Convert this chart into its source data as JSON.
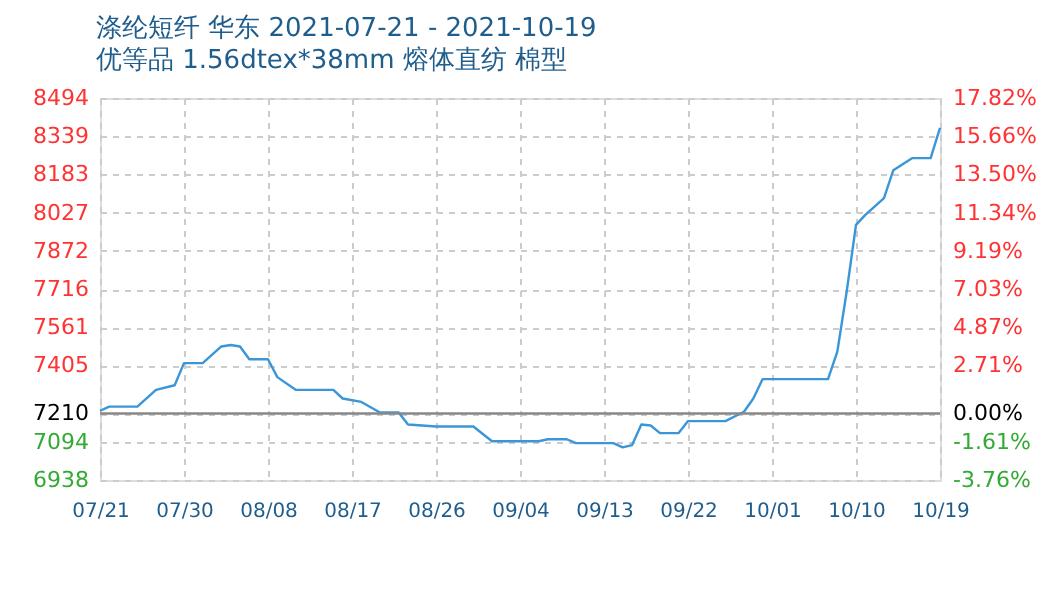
{
  "chart_data": {
    "type": "line",
    "title": "涤纶短纤 华东 2021-07-21 - 2021-10-19",
    "subtitle": "优等品 1.56dtex*38mm 熔体直纺 棉型",
    "x": [
      "2021-07-21",
      "2021-07-22",
      "2021-07-25",
      "2021-07-27",
      "2021-07-29",
      "2021-07-30",
      "2021-08-01",
      "2021-08-03",
      "2021-08-04",
      "2021-08-05",
      "2021-08-06",
      "2021-08-08",
      "2021-08-09",
      "2021-08-11",
      "2021-08-15",
      "2021-08-16",
      "2021-08-18",
      "2021-08-20",
      "2021-08-22",
      "2021-08-23",
      "2021-08-26",
      "2021-08-30",
      "2021-09-01",
      "2021-09-06",
      "2021-09-07",
      "2021-09-09",
      "2021-09-10",
      "2021-09-14",
      "2021-09-15",
      "2021-09-16",
      "2021-09-17",
      "2021-09-18",
      "2021-09-19",
      "2021-09-21",
      "2021-09-22",
      "2021-09-26",
      "2021-09-28",
      "2021-09-29",
      "2021-09-30",
      "2021-10-07",
      "2021-10-08",
      "2021-10-09",
      "2021-10-10",
      "2021-10-11",
      "2021-10-13",
      "2021-10-14",
      "2021-10-16",
      "2021-10-18",
      "2021-10-19"
    ],
    "series": [
      {
        "color": "#3a96d8",
        "values": [
          7220,
          7237,
          7237,
          7305,
          7324,
          7414,
          7414,
          7482,
          7488,
          7482,
          7430,
          7430,
          7357,
          7305,
          7305,
          7270,
          7256,
          7213,
          7213,
          7164,
          7156,
          7156,
          7096,
          7096,
          7104,
          7104,
          7088,
          7088,
          7071,
          7080,
          7164,
          7160,
          7129,
          7129,
          7178,
          7178,
          7216,
          7270,
          7349,
          7349,
          7461,
          7705,
          7977,
          8018,
          8086,
          8200,
          8249,
          8249,
          8372
        ]
      }
    ],
    "xlim": [
      "2021-07-21",
      "2021-10-19"
    ],
    "xticks": [
      {
        "value": "2021-07-21",
        "label": "07/21"
      },
      {
        "value": "2021-07-30",
        "label": "07/30"
      },
      {
        "value": "2021-08-08",
        "label": "08/08"
      },
      {
        "value": "2021-08-17",
        "label": "08/17"
      },
      {
        "value": "2021-08-26",
        "label": "08/26"
      },
      {
        "value": "2021-09-04",
        "label": "09/04"
      },
      {
        "value": "2021-09-13",
        "label": "09/13"
      },
      {
        "value": "2021-09-22",
        "label": "09/22"
      },
      {
        "value": "2021-10-01",
        "label": "10/01"
      },
      {
        "value": "2021-10-10",
        "label": "10/10"
      },
      {
        "value": "2021-10-19",
        "label": "10/19"
      }
    ],
    "ylim": [
      6938,
      8494
    ],
    "yticks": [
      6938,
      7094,
      7210,
      7405,
      7561,
      7716,
      7872,
      8027,
      8183,
      8339,
      8494
    ],
    "y2lim": [
      -3.76,
      17.82
    ],
    "y2ticks": [
      {
        "value": -3.76,
        "label": "-3.76%"
      },
      {
        "value": -1.61,
        "label": "-1.61%"
      },
      {
        "value": 0,
        "label": "0.00%"
      },
      {
        "value": 2.71,
        "label": "2.71%"
      },
      {
        "value": 4.87,
        "label": "4.87%"
      },
      {
        "value": 7.03,
        "label": "7.03%"
      },
      {
        "value": 9.19,
        "label": "9.19%"
      },
      {
        "value": 11.34,
        "label": "11.34%"
      },
      {
        "value": 13.5,
        "label": "13.50%"
      },
      {
        "value": 15.66,
        "label": "15.66%"
      },
      {
        "value": 17.82,
        "label": "17.82%"
      }
    ],
    "ref_lines": [
      {
        "axis": "y2",
        "value": 0,
        "color": "#888888"
      }
    ],
    "grid": true,
    "marker": "none",
    "line_style": "solid"
  }
}
